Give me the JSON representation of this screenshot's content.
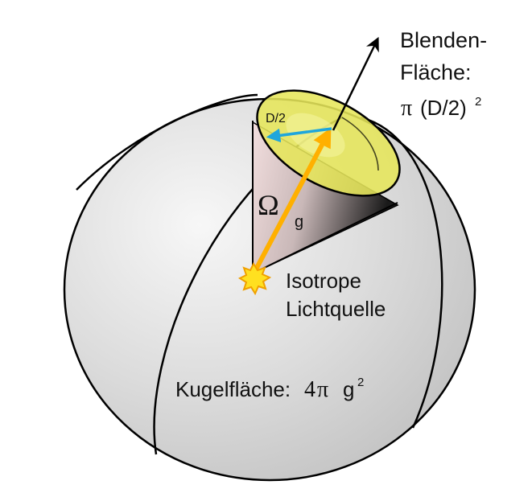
{
  "labels": {
    "aperture_line1": "Blenden-",
    "aperture_line2": "Fläche:",
    "aperture_formula_pi": "π",
    "aperture_formula_body": "(D/2)",
    "aperture_formula_exp": "2",
    "radius_label": "D/2",
    "solid_angle_symbol": "Ω",
    "solid_angle_sub": "g",
    "source_line1": "Isotrope",
    "source_line2": "Lichtquelle",
    "sphere_prefix": "Kugelfläche:",
    "sphere_coef": "4",
    "sphere_pi": "π",
    "sphere_var": "g",
    "sphere_exp": "2"
  },
  "colors": {
    "sphere_fill": "#d4d4d4",
    "sphere_highlight": "#f6f6f6",
    "aperture_fill": "#e6e65a",
    "source_ray": "#ffb000",
    "radius_arrow": "#1fa6dc",
    "outline": "#000000"
  },
  "icons": {
    "source": "starburst-light-icon",
    "direction": "arrow-up-right-icon"
  }
}
